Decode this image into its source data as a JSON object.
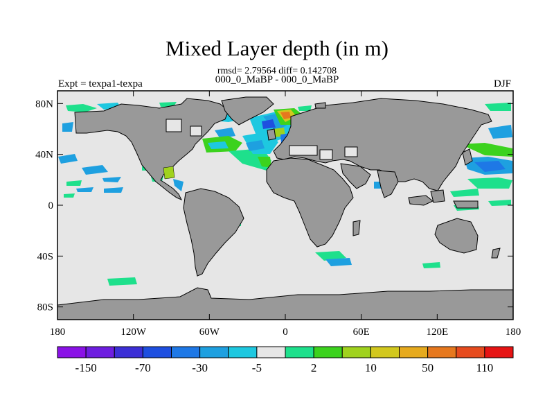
{
  "title": "Mixed Layer depth (in m)",
  "stats": "rmsd= 2.79564 diff= 0.142708",
  "comparison": "000_0_MaBP - 000_0_MaBP",
  "experiment": "Expt = texpa1-texpa",
  "season": "DJF",
  "map": {
    "lon_range": [
      -180,
      180
    ],
    "lat_range": [
      -90,
      90
    ],
    "lon_ticks": [
      "180",
      "120W",
      "60W",
      "0",
      "60E",
      "120E",
      "180"
    ],
    "lat_ticks": [
      "80N",
      "40N",
      "0",
      "40S",
      "80S"
    ],
    "land_color": "#999999",
    "ocean_color": "#e6e6e6"
  },
  "colorbar": {
    "colors": [
      "#8a12e6",
      "#6e1ee0",
      "#3c2fd6",
      "#1e4fe0",
      "#1e78e6",
      "#1ea0e0",
      "#1ec8e0",
      "#e6e6e6",
      "#1ee08c",
      "#3cd21e",
      "#a0d21e",
      "#d2c81e",
      "#e6aa1e",
      "#e6781e",
      "#e64b1e",
      "#e61414"
    ],
    "labels": [
      "-150",
      "-70",
      "-30",
      "-5",
      "2",
      "10",
      "50",
      "110"
    ]
  }
}
